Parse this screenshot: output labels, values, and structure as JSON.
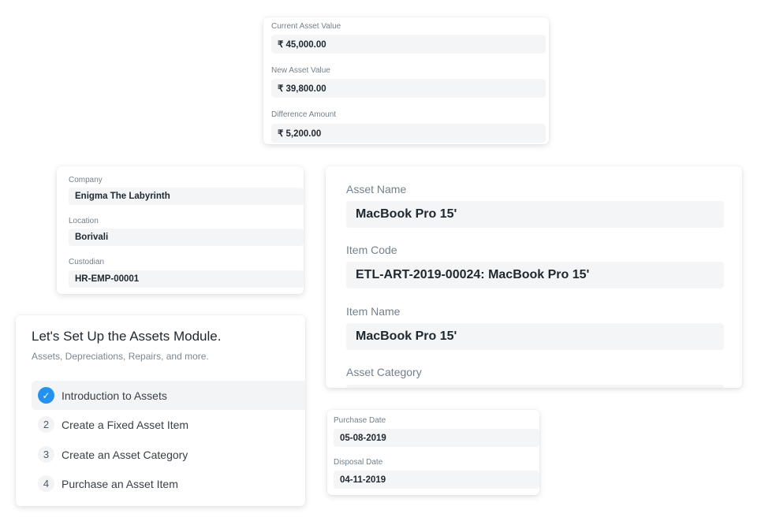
{
  "valuation": {
    "fields": [
      {
        "label": "Current Asset Value",
        "value": "₹ 45,000.00"
      },
      {
        "label": "New Asset Value",
        "value": "₹ 39,800.00"
      },
      {
        "label": "Difference Amount",
        "value": "₹ 5,200.00"
      }
    ]
  },
  "ownership": {
    "fields": [
      {
        "label": "Company",
        "value": "Enigma The Labyrinth"
      },
      {
        "label": "Location",
        "value": "Borivali"
      },
      {
        "label": "Custodian",
        "value": "HR-EMP-00001"
      }
    ]
  },
  "asset": {
    "fields": [
      {
        "label": "Asset Name",
        "value": "MacBook Pro 15'"
      },
      {
        "label": "Item Code",
        "value": "ETL-ART-2019-00024: MacBook Pro 15'"
      },
      {
        "label": "Item Name",
        "value": "MacBook Pro 15'"
      },
      {
        "label": "Asset Category",
        "value": ""
      }
    ]
  },
  "onboarding": {
    "title": "Let's Set Up the Assets Module.",
    "subtitle": "Assets, Depreciations, Repairs, and more.",
    "accent": "#2490ef",
    "steps": [
      {
        "marker": "✓",
        "label": "Introduction to Assets",
        "completed": true
      },
      {
        "marker": "2",
        "label": "Create a Fixed Asset Item",
        "completed": false
      },
      {
        "marker": "3",
        "label": "Create an Asset Category",
        "completed": false
      },
      {
        "marker": "4",
        "label": "Purchase an Asset Item",
        "completed": false
      }
    ]
  },
  "dates": {
    "fields": [
      {
        "label": "Purchase Date",
        "value": "05-08-2019"
      },
      {
        "label": "Disposal Date",
        "value": "04-11-2019"
      }
    ]
  }
}
